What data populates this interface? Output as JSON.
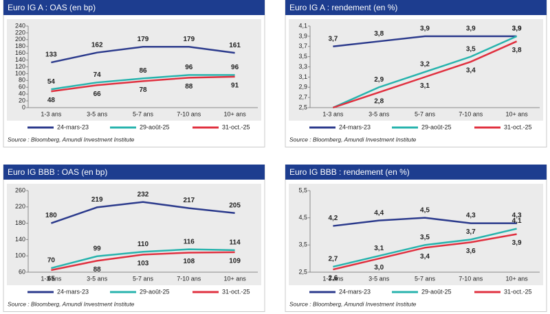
{
  "chart_data": [
    {
      "type": "line",
      "title": "Euro IG A : OAS (en bp)",
      "categories": [
        "1-3 ans",
        "3-5 ans",
        "5-7 ans",
        "7-10 ans",
        "10+ ans"
      ],
      "series": [
        {
          "name": "24-mars-23",
          "color": "#2b3a8c",
          "values": [
            133,
            162,
            179,
            179,
            161
          ]
        },
        {
          "name": "29-août-25",
          "color": "#27b3ad",
          "values": [
            54,
            74,
            86,
            96,
            96
          ]
        },
        {
          "name": "31-oct.-25",
          "color": "#e0303f",
          "values": [
            48,
            66,
            78,
            88,
            91
          ]
        }
      ],
      "ylim": [
        0,
        240
      ],
      "yticks": [
        0,
        20,
        40,
        60,
        80,
        100,
        120,
        140,
        160,
        180,
        200,
        220,
        240
      ],
      "grid": false,
      "source": "Source : Bloomberg, Amundi Investment Institute"
    },
    {
      "type": "line",
      "title": "Euro IG A : rendement (en %)",
      "categories": [
        "1-3 ans",
        "3-5 ans",
        "5-7 ans",
        "7-10 ans",
        "10+ ans"
      ],
      "series": [
        {
          "name": "24-mars-23",
          "color": "#2b3a8c",
          "values": [
            3.7,
            3.8,
            3.9,
            3.9,
            3.9
          ],
          "value_labels": [
            "3,7",
            "3,8",
            "3,9",
            "3,9",
            "3,9"
          ]
        },
        {
          "name": "29-août-25",
          "color": "#27b3ad",
          "values": [
            2.5,
            2.9,
            3.2,
            3.5,
            3.9
          ],
          "value_labels": [
            null,
            "2,9",
            "3,2",
            "3,5",
            "3,9"
          ]
        },
        {
          "name": "31-oct.-25",
          "color": "#e0303f",
          "values": [
            2.5,
            2.8,
            3.1,
            3.4,
            3.8
          ],
          "value_labels": [
            null,
            "2,8",
            "3,1",
            "3,4",
            "3,8"
          ]
        }
      ],
      "ylim": [
        2.5,
        4.1
      ],
      "yticks": [
        {
          "value": 2.5,
          "label": "2,5"
        },
        {
          "value": 2.7,
          "label": "2,7"
        },
        {
          "value": 2.9,
          "label": "2,9"
        },
        {
          "value": 3.1,
          "label": "3,1"
        },
        {
          "value": 3.3,
          "label": "3,3"
        },
        {
          "value": 3.5,
          "label": "3,5"
        },
        {
          "value": 3.7,
          "label": "3,7"
        },
        {
          "value": 3.9,
          "label": "3,9"
        },
        {
          "value": 4.1,
          "label": "4,1"
        }
      ],
      "grid": false,
      "source": "Source : Bloomberg, Amundi Investment Institute"
    },
    {
      "type": "line",
      "title": "Euro IG BBB : OAS (en bp)",
      "categories": [
        "1-3 ans",
        "3-5 ans",
        "5-7 ans",
        "7-10 ans",
        "10+ ans"
      ],
      "series": [
        {
          "name": "24-mars-23",
          "color": "#2b3a8c",
          "values": [
            180,
            219,
            232,
            217,
            205
          ]
        },
        {
          "name": "29-août-25",
          "color": "#27b3ad",
          "values": [
            70,
            99,
            110,
            116,
            114
          ]
        },
        {
          "name": "31-oct.-25",
          "color": "#e0303f",
          "values": [
            65,
            88,
            103,
            108,
            109
          ]
        }
      ],
      "ylim": [
        60,
        260
      ],
      "yticks": [
        60,
        100,
        140,
        180,
        220,
        260
      ],
      "grid": false,
      "source": "Source : Bloomberg, Amundi Investment Institute"
    },
    {
      "type": "line",
      "title": "Euro IG BBB : rendement (en %)",
      "categories": [
        "1-3 ans",
        "3-5 ans",
        "5-7 ans",
        "7-10 ans",
        "10+ ans"
      ],
      "series": [
        {
          "name": "24-mars-23",
          "color": "#2b3a8c",
          "values": [
            4.2,
            4.4,
            4.5,
            4.3,
            4.3
          ],
          "value_labels": [
            "4,2",
            "4,4",
            "4,5",
            "4,3",
            "4,3"
          ]
        },
        {
          "name": "29-août-25",
          "color": "#27b3ad",
          "values": [
            2.7,
            3.1,
            3.5,
            3.7,
            4.1
          ],
          "value_labels": [
            "2,7",
            "3,1",
            "3,5",
            "3,7",
            "4,1"
          ]
        },
        {
          "name": "31-oct.-25",
          "color": "#e0303f",
          "values": [
            2.6,
            3.0,
            3.4,
            3.6,
            3.9
          ],
          "value_labels": [
            "2,6",
            "3,0",
            "3,4",
            "3,6",
            "3,9"
          ]
        }
      ],
      "ylim": [
        2.5,
        5.5
      ],
      "yticks": [
        {
          "value": 2.5,
          "label": "2,5"
        },
        {
          "value": 3.5,
          "label": "3,5"
        },
        {
          "value": 4.5,
          "label": "4,5"
        },
        {
          "value": 5.5,
          "label": "5,5"
        }
      ],
      "grid": false,
      "source": "Source : Bloomberg, Amundi Investment Institute"
    }
  ]
}
